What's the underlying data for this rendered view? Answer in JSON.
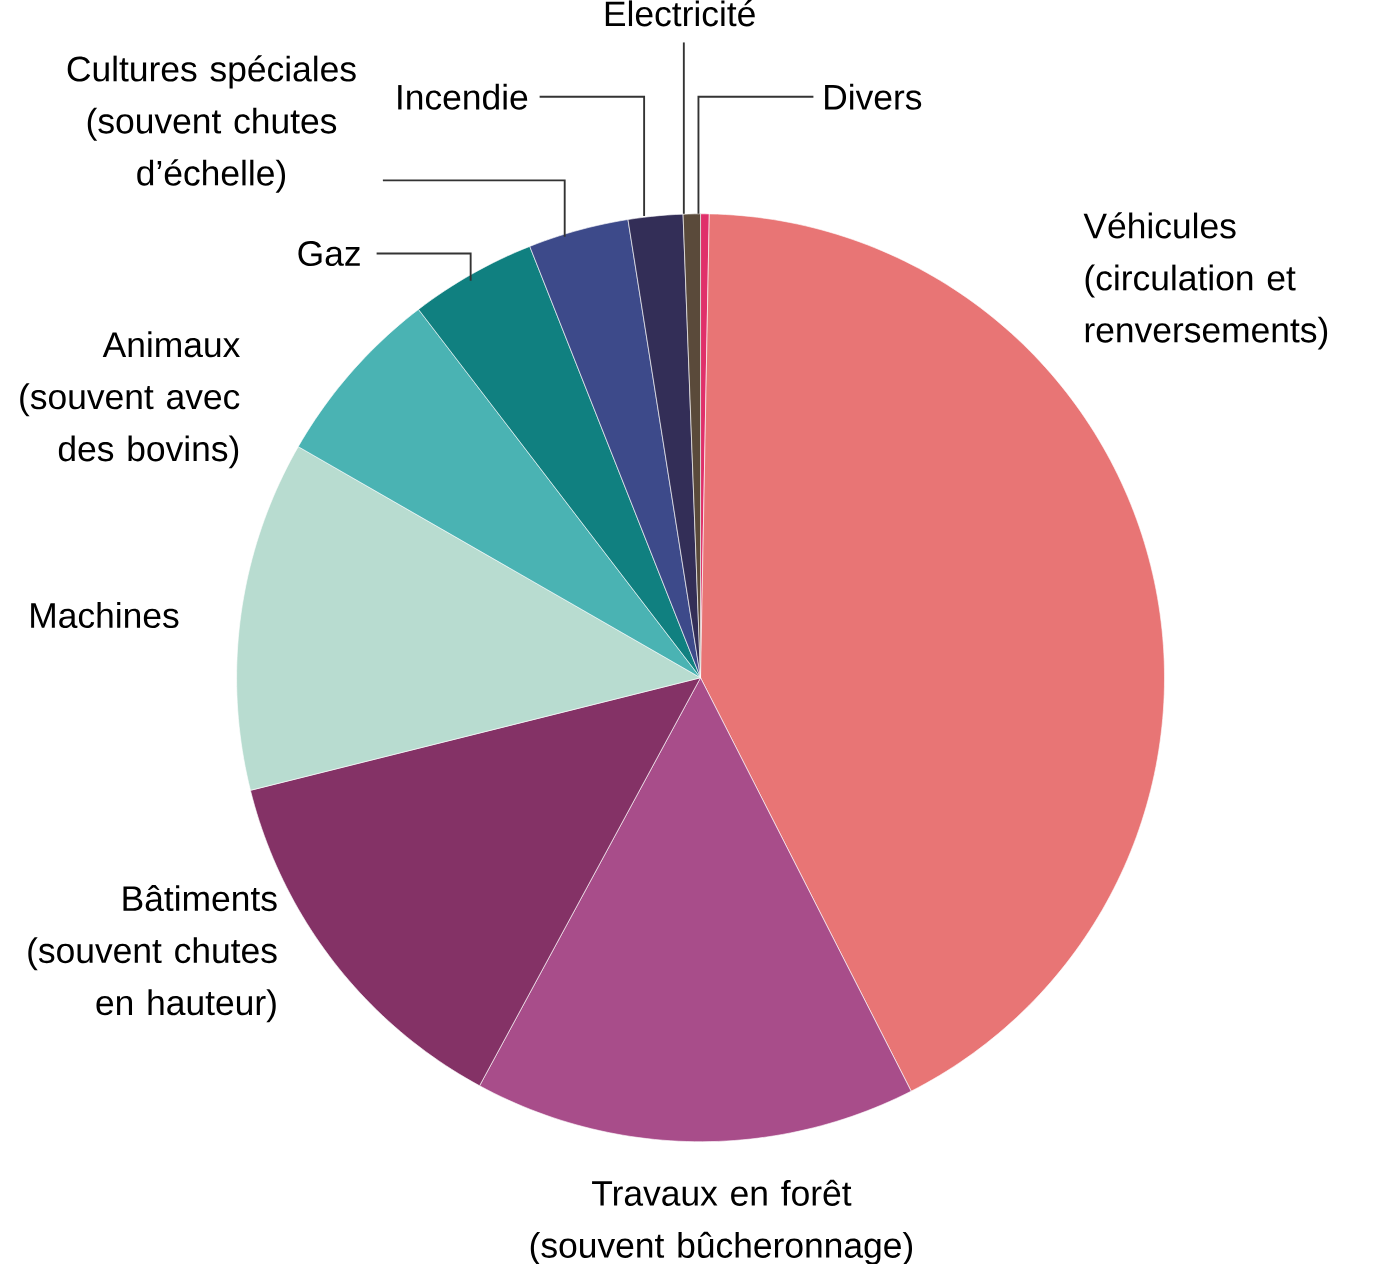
{
  "chart_data": {
    "type": "pie",
    "categories": [
      "Divers",
      "Véhicules (circulation et renversements)",
      "Travaux en forêt (souvent bûcheronnage)",
      "Bâtiments (souvent chutes en hauteur)",
      "Machines",
      "Animaux (souvent avec des bovins)",
      "Gaz",
      "Cultures spéciales (souvent chutes d’échelle)",
      "Incendie",
      "Electricité"
    ],
    "values": [
      0.3,
      42.2,
      15.4,
      13.2,
      12.2,
      6.3,
      4.4,
      3.5,
      1.9,
      0.6
    ],
    "colors": [
      "#e0306a",
      "#e87575",
      "#a84d8a",
      "#843266",
      "#b8dcd0",
      "#4ab3b3",
      "#108080",
      "#3d4a8a",
      "#332e57",
      "#5a4a3a"
    ]
  }
}
